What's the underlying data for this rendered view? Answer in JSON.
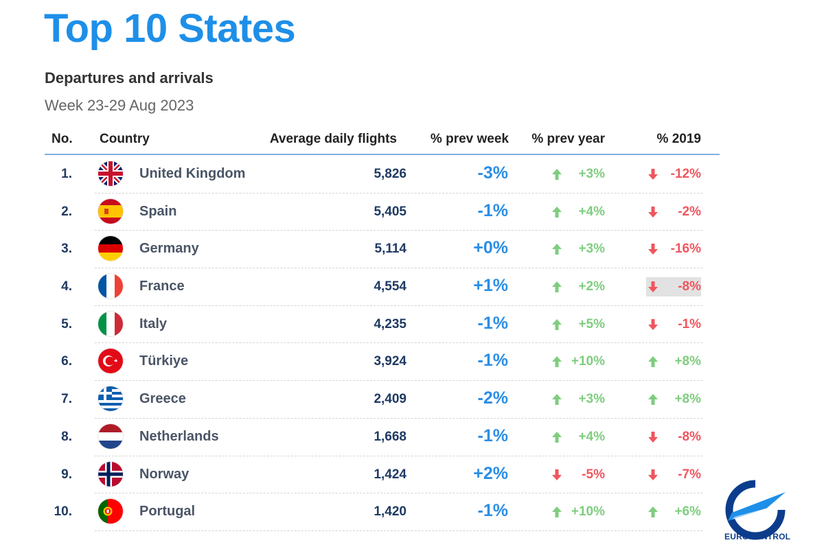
{
  "title": "Top 10 States",
  "subtitle": "Departures and arrivals",
  "period": "Week 23-29 Aug 2023",
  "columns": {
    "no": "No.",
    "country": "Country",
    "flights": "Average daily flights",
    "prev_week": "% prev week",
    "prev_year": "% prev year",
    "y2019": "% 2019"
  },
  "colors": {
    "title": "#1e8fe8",
    "up": "#7fcd7f",
    "down": "#f0565e",
    "prev_week": "#2a8ee6",
    "navy": "#1f3a63"
  },
  "rows": [
    {
      "no": "1.",
      "country": "United Kingdom",
      "flag": "uk-flag-icon",
      "flights": "5,826",
      "prev_week": "-3%",
      "prev_year": "+3%",
      "prev_year_dir": "up",
      "y2019": "-12%",
      "y2019_dir": "down",
      "highlight": false
    },
    {
      "no": "2.",
      "country": "Spain",
      "flag": "spain-flag-icon",
      "flights": "5,405",
      "prev_week": "-1%",
      "prev_year": "+4%",
      "prev_year_dir": "up",
      "y2019": "-2%",
      "y2019_dir": "down",
      "highlight": false
    },
    {
      "no": "3.",
      "country": "Germany",
      "flag": "germany-flag-icon",
      "flights": "5,114",
      "prev_week": "+0%",
      "prev_year": "+3%",
      "prev_year_dir": "up",
      "y2019": "-16%",
      "y2019_dir": "down",
      "highlight": false
    },
    {
      "no": "4.",
      "country": "France",
      "flag": "france-flag-icon",
      "flights": "4,554",
      "prev_week": "+1%",
      "prev_year": "+2%",
      "prev_year_dir": "up",
      "y2019": "-8%",
      "y2019_dir": "down",
      "highlight": true
    },
    {
      "no": "5.",
      "country": "Italy",
      "flag": "italy-flag-icon",
      "flights": "4,235",
      "prev_week": "-1%",
      "prev_year": "+5%",
      "prev_year_dir": "up",
      "y2019": "-1%",
      "y2019_dir": "down",
      "highlight": false
    },
    {
      "no": "6.",
      "country": "Türkiye",
      "flag": "turkiye-flag-icon",
      "flights": "3,924",
      "prev_week": "-1%",
      "prev_year": "+10%",
      "prev_year_dir": "up",
      "y2019": "+8%",
      "y2019_dir": "up",
      "highlight": false
    },
    {
      "no": "7.",
      "country": "Greece",
      "flag": "greece-flag-icon",
      "flights": "2,409",
      "prev_week": "-2%",
      "prev_year": "+3%",
      "prev_year_dir": "up",
      "y2019": "+8%",
      "y2019_dir": "up",
      "highlight": false
    },
    {
      "no": "8.",
      "country": "Netherlands",
      "flag": "netherlands-flag-icon",
      "flights": "1,668",
      "prev_week": "-1%",
      "prev_year": "+4%",
      "prev_year_dir": "up",
      "y2019": "-8%",
      "y2019_dir": "down",
      "highlight": false
    },
    {
      "no": "9.",
      "country": "Norway",
      "flag": "norway-flag-icon",
      "flights": "1,424",
      "prev_week": "+2%",
      "prev_year": "-5%",
      "prev_year_dir": "down",
      "y2019": "-7%",
      "y2019_dir": "down",
      "highlight": false
    },
    {
      "no": "10.",
      "country": "Portugal",
      "flag": "portugal-flag-icon",
      "flights": "1,420",
      "prev_week": "-1%",
      "prev_year": "+10%",
      "prev_year_dir": "up",
      "y2019": "+6%",
      "y2019_dir": "up",
      "highlight": false
    }
  ],
  "logo": {
    "icon": "eurocontrol-logo-icon",
    "text": "EUROCONTROL"
  }
}
